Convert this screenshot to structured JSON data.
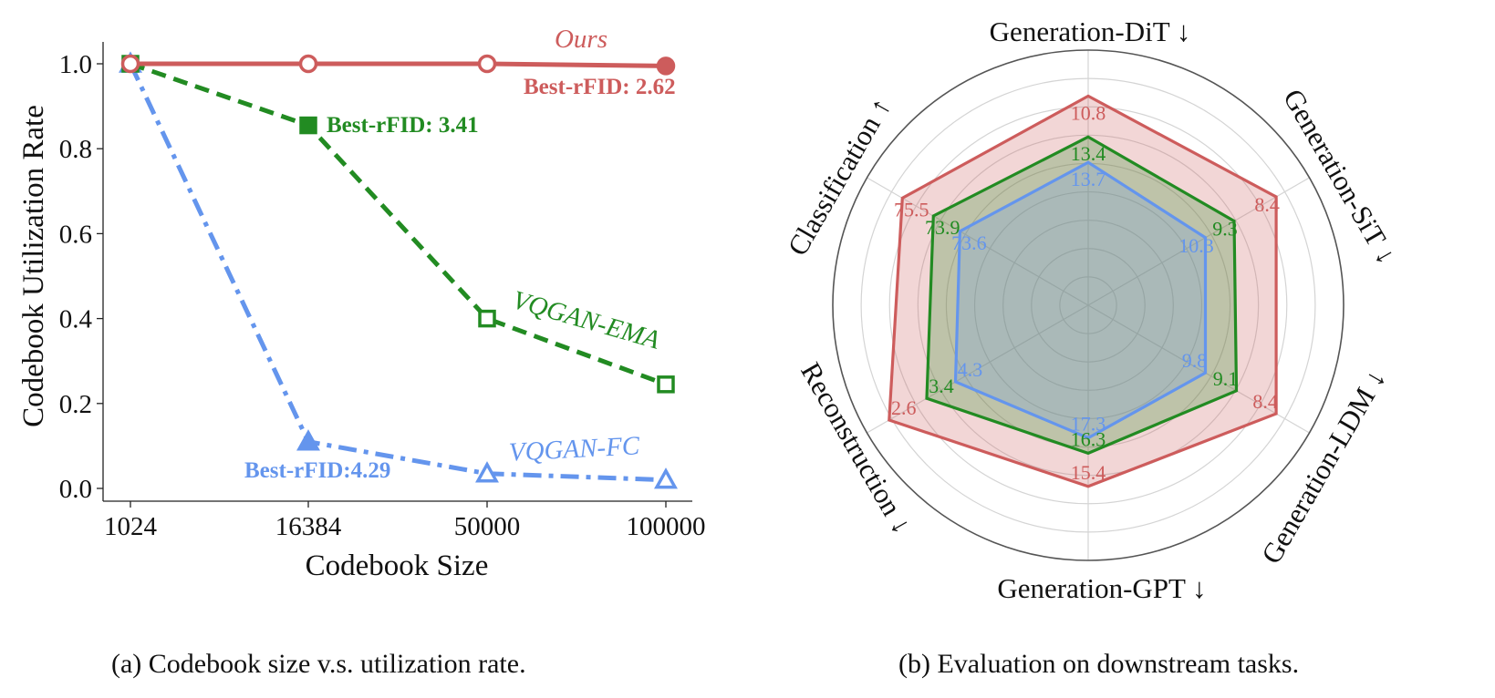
{
  "chart_data": [
    {
      "type": "line",
      "panel_caption": "(a) Codebook size v.s. utilization rate.",
      "xlabel": "Codebook Size",
      "ylabel": "Codebook Utilization Rate",
      "categories": [
        "1024",
        "16384",
        "50000",
        "100000"
      ],
      "ylim": [
        0.0,
        1.0
      ],
      "yticks": [
        "0.0",
        "0.2",
        "0.4",
        "0.6",
        "0.8",
        "1.0"
      ],
      "grid": false,
      "series": [
        {
          "name": "Ours",
          "color": "#cd5c5c",
          "line_style": "solid",
          "marker": "circle",
          "values": [
            1.0,
            1.0,
            1.0,
            0.995
          ],
          "best_index": 3,
          "best_label": "Best-rFID: 2.62"
        },
        {
          "name": "VQGAN-EMA",
          "color": "#228b22",
          "line_style": "dashed",
          "marker": "square",
          "values": [
            1.0,
            0.855,
            0.4,
            0.245
          ],
          "best_index": 1,
          "best_label": "Best-rFID: 3.41"
        },
        {
          "name": "VQGAN-FC",
          "color": "#6495ed",
          "line_style": "dashdot",
          "marker": "triangle",
          "values": [
            1.0,
            0.11,
            0.035,
            0.02
          ],
          "best_index": 1,
          "best_label": "Best-rFID:4.29"
        }
      ]
    },
    {
      "type": "radar",
      "panel_caption": "(b) Evaluation on downstream tasks.",
      "axes": [
        "Generation-DiT ↓",
        "Generation-SiT ↓",
        "Generation-LDM ↓",
        "Generation-GPT ↓",
        "Reconstruction ↓",
        "Classification ↑"
      ],
      "rings": 8,
      "series": [
        {
          "color": "#cd5c5c",
          "labels": [
            "10.8",
            "8.4",
            "8.4",
            "15.4",
            "2.6",
            "75.5"
          ],
          "radial_fraction": [
            0.82,
            0.85,
            0.85,
            0.71,
            0.9,
            0.84
          ]
        },
        {
          "color": "#228b22",
          "labels": [
            "13.4",
            "9.3",
            "9.1",
            "16.3",
            "3.4",
            "73.9"
          ],
          "radial_fraction": [
            0.66,
            0.66,
            0.67,
            0.58,
            0.73,
            0.7
          ]
        },
        {
          "color": "#6495ed",
          "labels": [
            "13.7",
            "10.3",
            "9.8",
            "17.3",
            "4.3",
            "73.6"
          ],
          "radial_fraction": [
            0.56,
            0.53,
            0.53,
            0.52,
            0.6,
            0.58
          ]
        }
      ]
    }
  ]
}
